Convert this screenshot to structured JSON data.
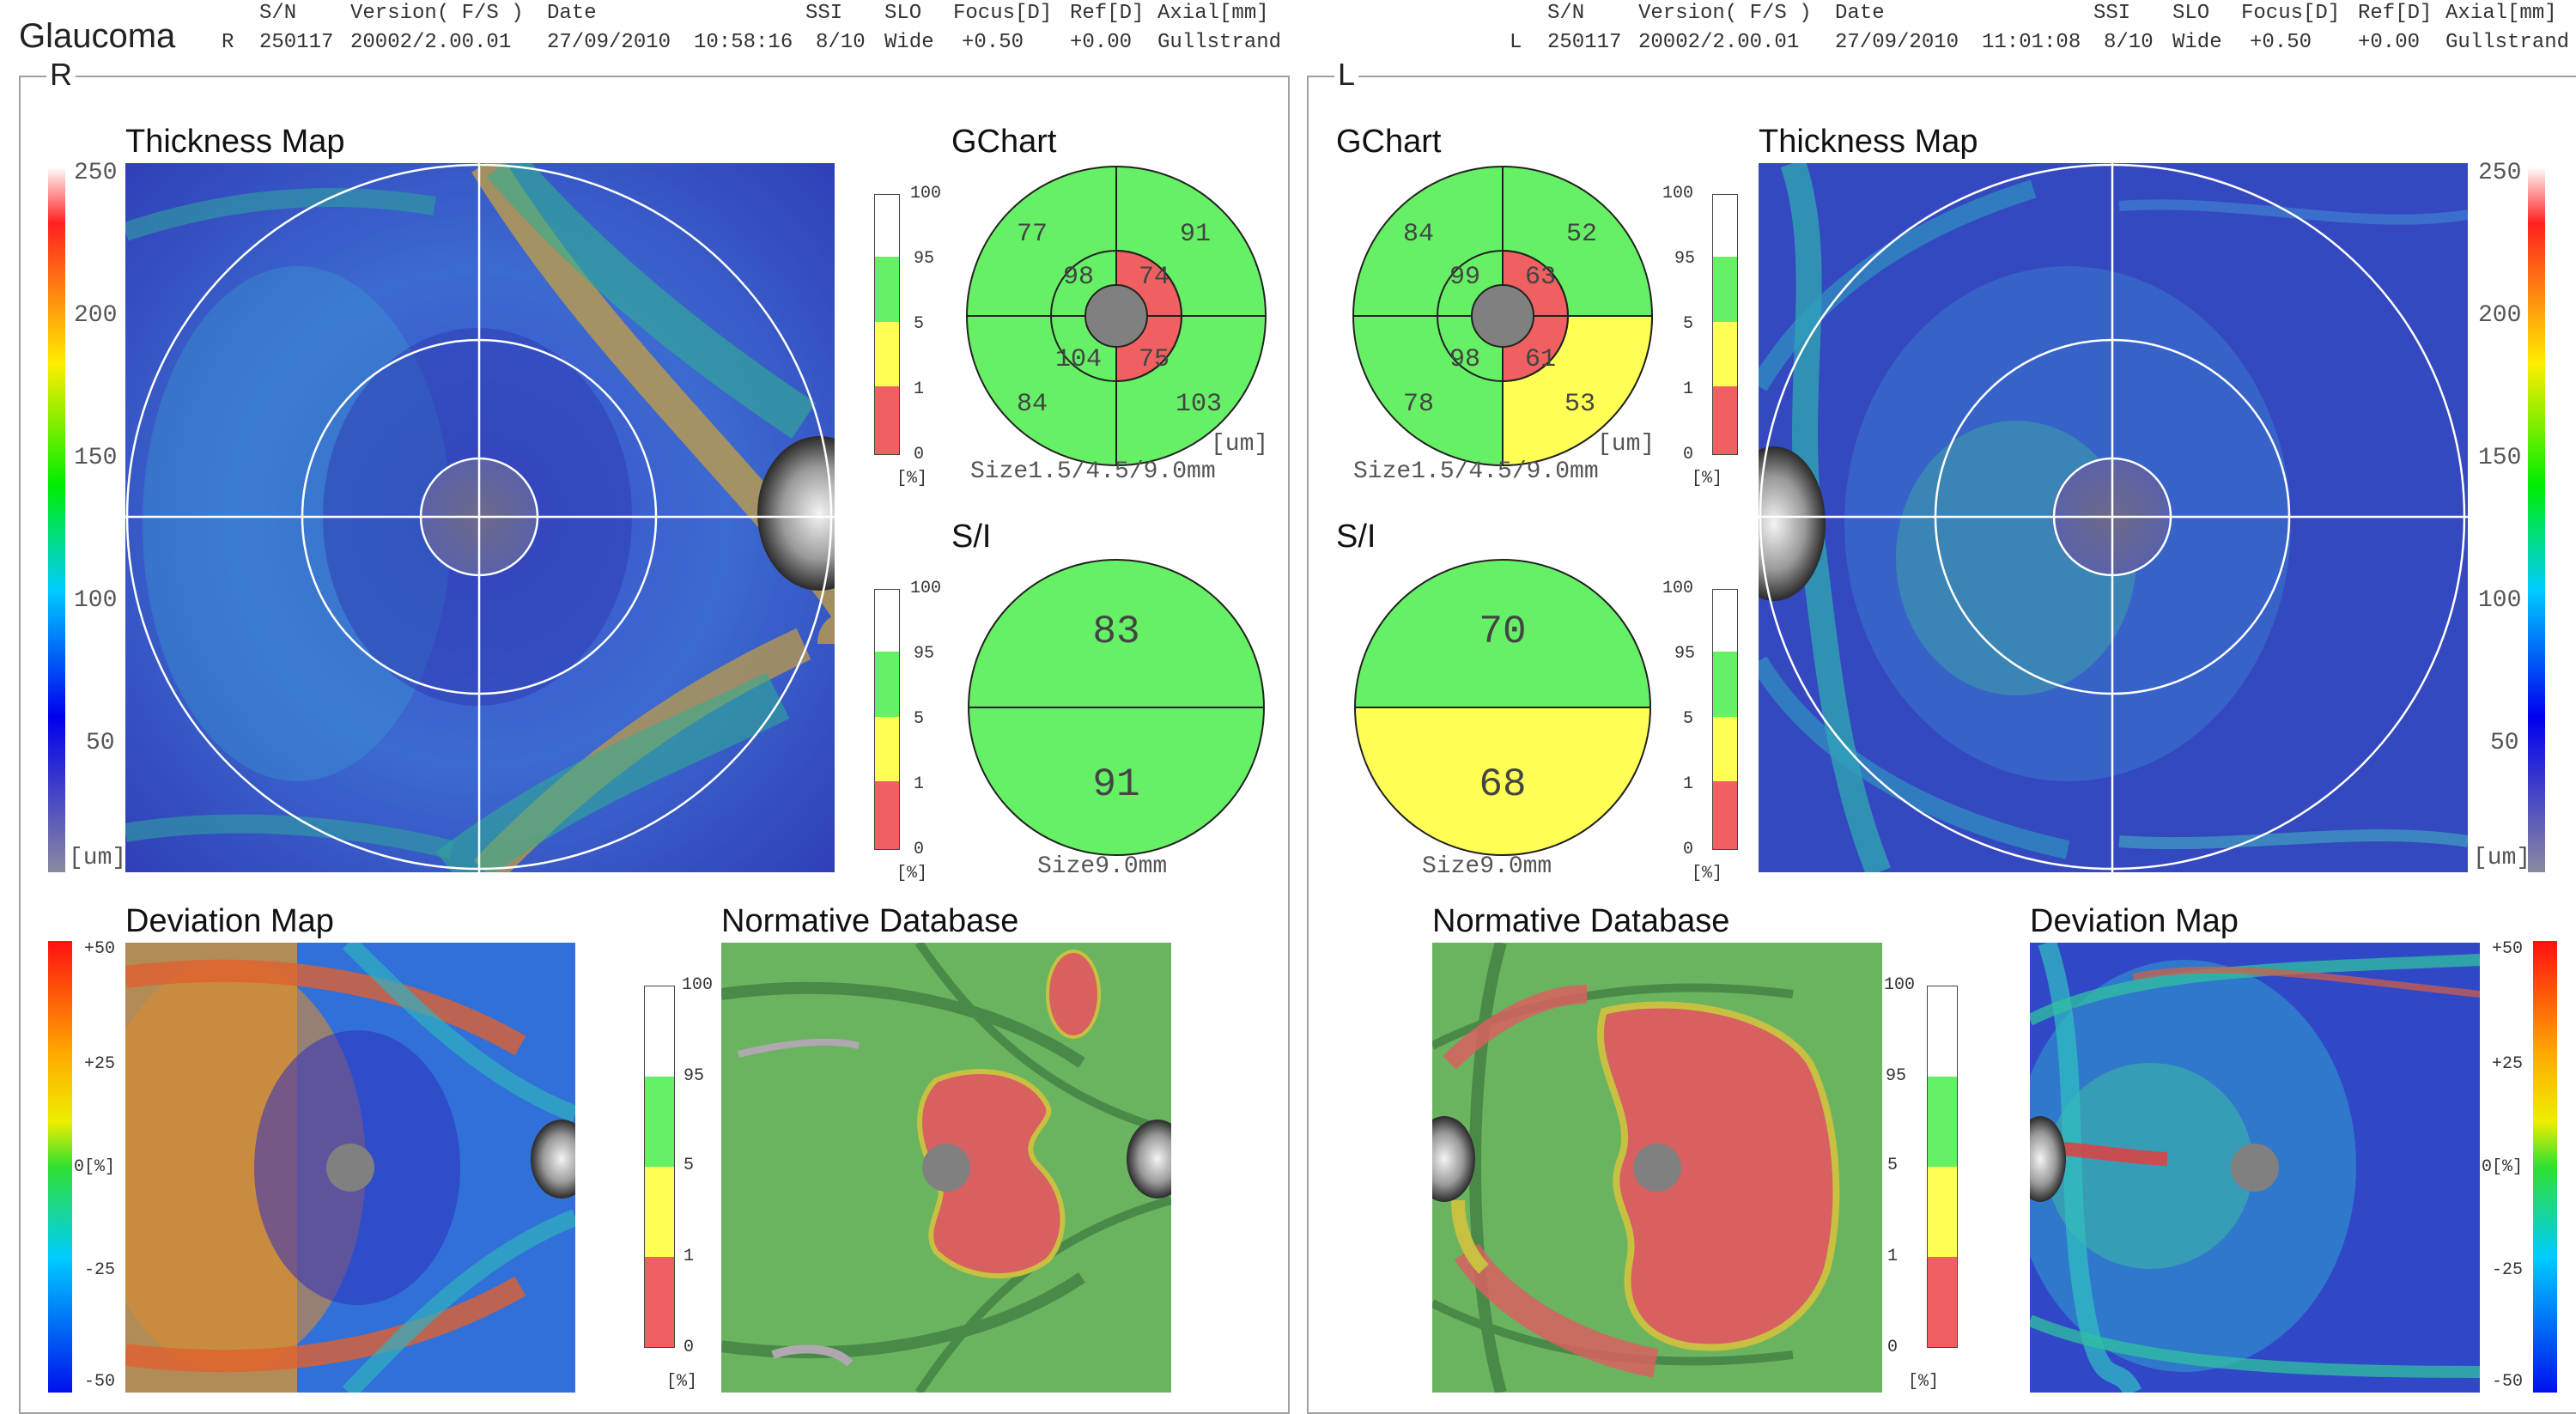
{
  "report_title": "Glaucoma",
  "colors": {
    "red_zone": "#f06060",
    "yellow_zone": "#ffff55",
    "green_zone": "#66f066",
    "white_zone": "#ffffff",
    "disc_gray": "#808080",
    "frame_gray": "#a0a0a0"
  },
  "header_columns": [
    "S/N",
    "Version( F/S )",
    "Date",
    "SSI",
    "SLO",
    "Focus[D]",
    "Ref[D]",
    "Axial[mm]"
  ],
  "eyes": {
    "right": {
      "eye": "R",
      "sn": "250117",
      "version": "20002/2.00.01",
      "date": "27/09/2010",
      "time": "10:58:16",
      "ssi": "8/10",
      "slo": "Wide",
      "focus": "+0.50",
      "ref": "+0.00",
      "axial": "Gullstrand",
      "gchart": {
        "outer_temporal_superior": "77",
        "outer_nasal_superior": "91",
        "inner_temporal_superior": "98",
        "inner_nasal_superior": "74",
        "inner_temporal_inferior": "104",
        "inner_nasal_inferior": "75",
        "outer_temporal_inferior": "84",
        "outer_nasal_inferior": "103"
      },
      "si": {
        "superior": "83",
        "inferior": "91"
      }
    },
    "left": {
      "eye": "L",
      "sn": "250117",
      "version": "20002/2.00.01",
      "date": "27/09/2010",
      "time": "11:01:08",
      "ssi": "8/10",
      "slo": "Wide",
      "focus": "+0.50",
      "ref": "+0.00",
      "axial": "Gullstrand",
      "gchart": {
        "outer_nasal_superior": "84",
        "outer_temporal_superior": "52",
        "inner_nasal_superior": "99",
        "inner_temporal_superior": "63",
        "inner_nasal_inferior": "98",
        "inner_temporal_inferior": "61",
        "outer_nasal_inferior": "78",
        "outer_temporal_inferior": "53"
      },
      "si": {
        "superior": "70",
        "inferior": "68"
      }
    }
  },
  "labels": {
    "thickness_map": "Thickness Map",
    "gchart": "GChart",
    "si": "S/I",
    "deviation_map": "Deviation Map",
    "normative_database": "Normative Database",
    "gchart_size": "Size1.5/4.5/9.0mm",
    "si_size": "Size9.0mm",
    "um": "[um]",
    "percent": "[%]",
    "zero_percent": "0[%]"
  },
  "thickness_scale": [
    "250",
    "200",
    "150",
    "100",
    "50"
  ],
  "deviation_scale": [
    "+50",
    "+25",
    "-25",
    "-50"
  ],
  "percentile_scale": [
    "100",
    "95",
    "5",
    "1",
    "0"
  ]
}
